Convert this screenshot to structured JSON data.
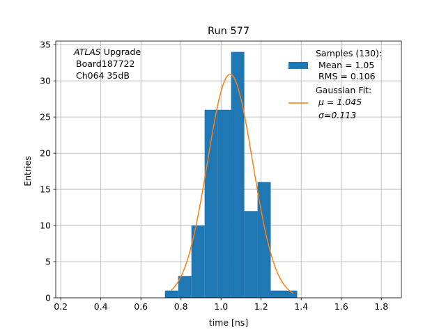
{
  "chart_data": {
    "type": "bar",
    "title": "Run 577",
    "xlabel": "time [ns]",
    "ylabel": "Entries",
    "xlim": [
      0.175,
      1.9
    ],
    "ylim": [
      0,
      35.5
    ],
    "grid": true,
    "legend_position": "upper-right",
    "xticks": [
      0.2,
      0.4,
      0.6,
      0.8,
      1.0,
      1.2,
      1.4,
      1.6,
      1.8
    ],
    "xtick_labels": [
      "0.2",
      "0.4",
      "0.6",
      "0.8",
      "1.0",
      "1.2",
      "1.4",
      "1.6",
      "1.8"
    ],
    "yticks": [
      0,
      5,
      10,
      15,
      20,
      25,
      30,
      35
    ],
    "ytick_labels": [
      "0",
      "5",
      "10",
      "15",
      "20",
      "25",
      "30",
      "35"
    ],
    "histogram": {
      "bin_edges": [
        0.72,
        0.786,
        0.852,
        0.918,
        0.984,
        1.05,
        1.116,
        1.182,
        1.248,
        1.314,
        1.38
      ],
      "counts": [
        1,
        3,
        10,
        26,
        26,
        34,
        12,
        16,
        1,
        1
      ],
      "color": "#1f77b4"
    },
    "gaussian_fit": {
      "amplitude": 30.9,
      "mu": 1.045,
      "sigma": 0.113,
      "x_range": [
        0.75,
        1.36
      ],
      "color": "#ff7f0e"
    },
    "annotation": [
      "ATLAS",
      " Upgrade",
      "Board187722",
      "Ch064 35dB"
    ],
    "legend": {
      "samples": [
        "Samples (130):",
        "Mean = 1.05",
        "RMS = 0.106"
      ],
      "fit": [
        "Gaussian Fit:",
        "μ = 1.045",
        "σ=0.113"
      ]
    }
  }
}
